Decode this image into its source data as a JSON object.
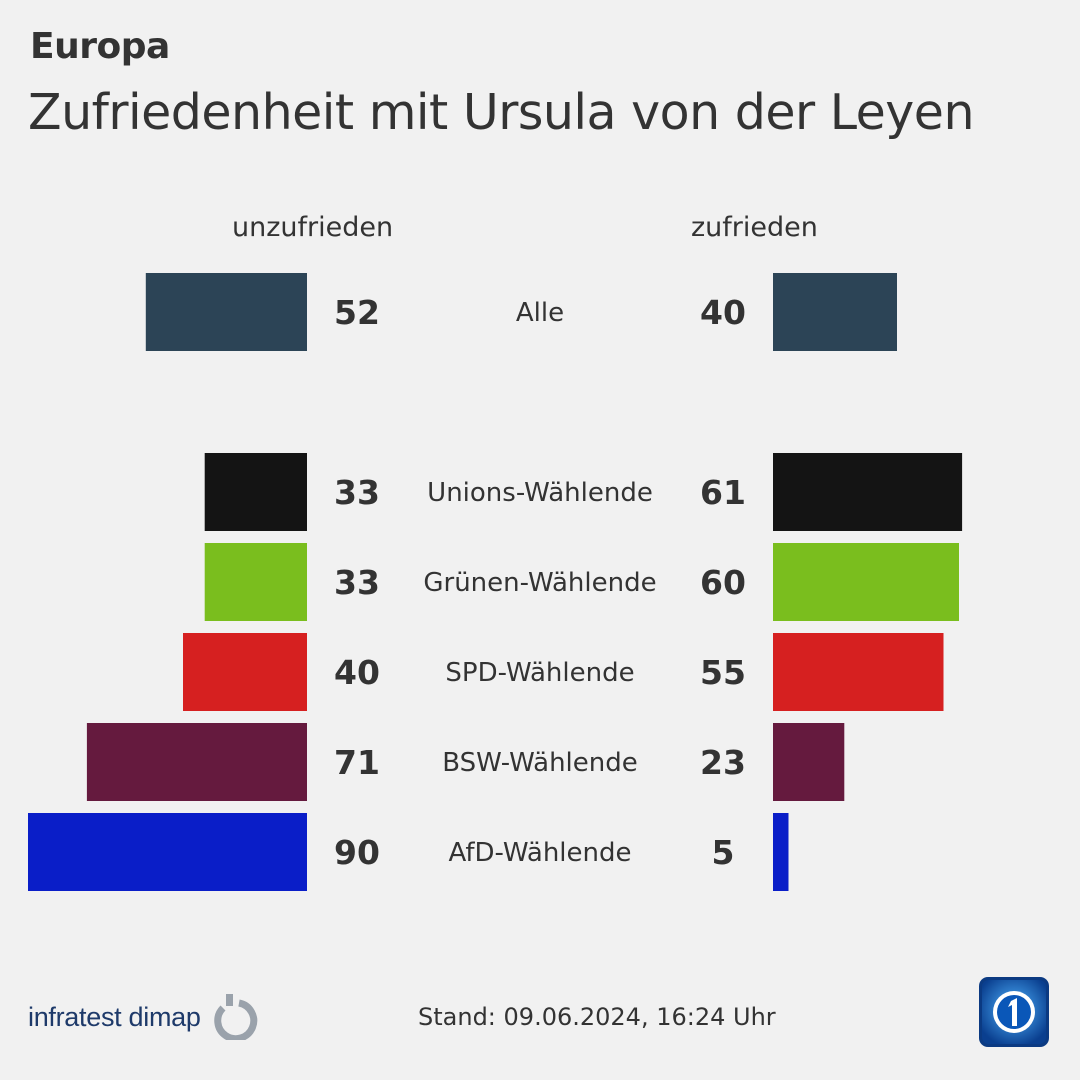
{
  "header": {
    "kicker": "Europa",
    "title": "Zufriedenheit mit Ursula von der Leyen"
  },
  "chart_data": {
    "type": "bar",
    "orientation": "diverging-horizontal",
    "left_label": "unzufrieden",
    "right_label": "zufrieden",
    "categories": [
      "Alle",
      "Unions-Wählende",
      "Grünen-Wählende",
      "SPD-Wählende",
      "BSW-Wählende",
      "AfD-Wählende"
    ],
    "series": [
      {
        "name": "unzufrieden",
        "values": [
          52,
          33,
          33,
          40,
          71,
          90
        ]
      },
      {
        "name": "zufrieden",
        "values": [
          40,
          61,
          60,
          55,
          23,
          5
        ]
      }
    ],
    "colors": [
      "#2c4456",
      "#141414",
      "#7abe1e",
      "#d62020",
      "#651a3e",
      "#0a1ec8"
    ],
    "xlim": [
      0,
      100
    ]
  },
  "footer": {
    "source": "infratest dimap",
    "stand_label": "Stand:",
    "stand_value": "09.06.2024, 16:24 Uhr"
  },
  "icons": {
    "source_logo": "infratest-dimap-logo-icon",
    "broadcaster_logo": "das-erste-logo-icon"
  }
}
